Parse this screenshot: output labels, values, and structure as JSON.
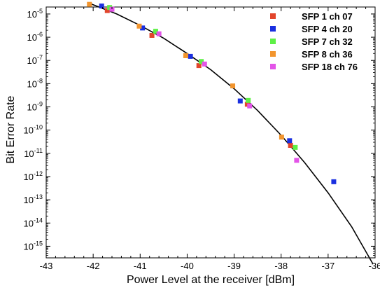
{
  "chart_data": {
    "type": "scatter",
    "title": "",
    "xlabel": "Power Level at the receiver [dBm]",
    "ylabel": "Bit Error Rate",
    "xlim": [
      -43,
      -36
    ],
    "ylim_exp": [
      -15.5,
      -4.7
    ],
    "y_scale": "log",
    "x_ticks": [
      "-43",
      "-42",
      "-41",
      "-40",
      "-39",
      "-38",
      "-37",
      "-36"
    ],
    "y_ticks": [
      {
        "base": "10",
        "exp": "-5"
      },
      {
        "base": "10",
        "exp": "-6"
      },
      {
        "base": "10",
        "exp": "-7"
      },
      {
        "base": "10",
        "exp": "-8"
      },
      {
        "base": "10",
        "exp": "-9"
      },
      {
        "base": "10",
        "exp": "-10"
      },
      {
        "base": "10",
        "exp": "-11"
      },
      {
        "base": "10",
        "exp": "-12"
      },
      {
        "base": "10",
        "exp": "-13"
      },
      {
        "base": "10",
        "exp": "-14"
      },
      {
        "base": "10",
        "exp": "-15"
      }
    ],
    "grid": false,
    "legend_position": "top-right",
    "series": [
      {
        "name": "SFP 1 ch 07",
        "color": "#e2452b",
        "points": [
          [
            -41.7,
            1.4e-05
          ],
          [
            -40.75,
            1.2e-06
          ],
          [
            -39.75,
            6e-08
          ],
          [
            -38.72,
            1.3e-09
          ],
          [
            -37.8,
            2.2e-11
          ]
        ]
      },
      {
        "name": "SFP 4 ch 20",
        "color": "#1a2fe0",
        "points": [
          [
            -41.82,
            2.2e-05
          ],
          [
            -40.95,
            2.5e-06
          ],
          [
            -39.93,
            1.5e-07
          ],
          [
            -38.87,
            1.8e-09
          ],
          [
            -37.82,
            3.5e-11
          ],
          [
            -36.88,
            6e-13
          ]
        ]
      },
      {
        "name": "SFP 7 ch 32",
        "color": "#5ef046",
        "points": [
          [
            -41.65,
            1.9e-05
          ],
          [
            -40.67,
            1.8e-06
          ],
          [
            -39.7,
            9e-08
          ],
          [
            -38.7,
            1.9e-09
          ],
          [
            -37.7,
            1.8e-11
          ]
        ]
      },
      {
        "name": "SFP 8 ch 36",
        "color": "#f2952e",
        "points": [
          [
            -42.08,
            2.6e-05
          ],
          [
            -41.02,
            3e-06
          ],
          [
            -40.03,
            1.6e-07
          ],
          [
            -39.03,
            8e-09
          ],
          [
            -37.99,
            5e-11
          ]
        ]
      },
      {
        "name": "SFP 18 ch 76",
        "color": "#e354e8",
        "points": [
          [
            -41.6,
            1.6e-05
          ],
          [
            -40.6,
            1.4e-06
          ],
          [
            -39.63,
            7e-08
          ],
          [
            -38.67,
            1.1e-09
          ],
          [
            -37.67,
            5e-12
          ]
        ]
      }
    ],
    "fit_curve": {
      "color": "#000000",
      "points": [
        [
          -42.1,
          3e-05
        ],
        [
          -41.5,
          1e-05
        ],
        [
          -41,
          3.2e-06
        ],
        [
          -40.5,
          9e-07
        ],
        [
          -40,
          2e-07
        ],
        [
          -39.5,
          4e-08
        ],
        [
          -39,
          6e-09
        ],
        [
          -38.5,
          7e-10
        ],
        [
          -38,
          6e-11
        ],
        [
          -37.5,
          4e-12
        ],
        [
          -37,
          2e-13
        ],
        [
          -36.5,
          7e-15
        ],
        [
          -36.05,
          1.8e-16
        ]
      ]
    }
  }
}
